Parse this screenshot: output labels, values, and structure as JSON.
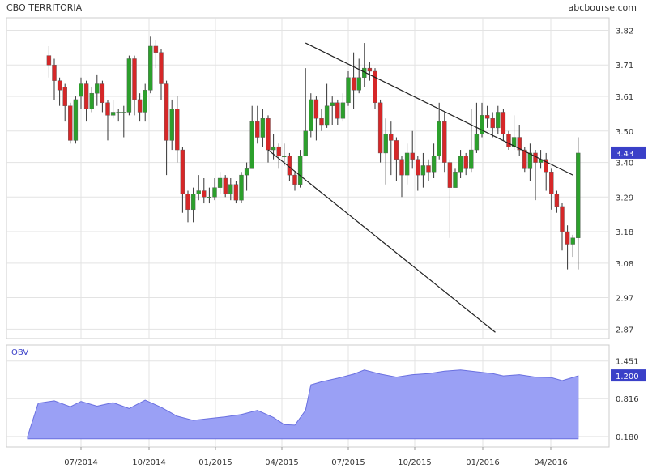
{
  "header": {
    "title": "CBO TERRITORIA",
    "source": "abcbourse.com"
  },
  "chart_data": [
    {
      "type": "candlestick",
      "title": "CBO TERRITORIA",
      "x": [
        "07/2014",
        "10/2014",
        "01/2015",
        "04/2015",
        "07/2015",
        "10/2015",
        "01/2016",
        "04/2016"
      ],
      "y_ticks": [
        "3.82",
        "3.71",
        "3.61",
        "3.50",
        "3.40",
        "3.29",
        "3.18",
        "3.08",
        "2.97",
        "2.87"
      ],
      "ylim": [
        2.84,
        3.86
      ],
      "last_value": "3.43",
      "colors": {
        "up": "#2ca02c",
        "down": "#d62728",
        "wick": "#333333"
      },
      "grid": true,
      "trendlines": [
        {
          "name": "upper",
          "from": [
            2015.34,
            3.78
          ],
          "to": [
            2016.34,
            3.36
          ]
        },
        {
          "name": "lower",
          "from": [
            2015.2,
            3.44
          ],
          "to": [
            2016.05,
            2.86
          ]
        }
      ],
      "series": [
        {
          "values": [
            [
              2014.38,
              3.74,
              3.71,
              3.77,
              3.67
            ],
            [
              2014.4,
              3.71,
              3.66,
              3.73,
              3.6
            ],
            [
              2014.42,
              3.66,
              3.63,
              3.67,
              3.58
            ],
            [
              2014.44,
              3.64,
              3.58,
              3.65,
              3.53
            ],
            [
              2014.46,
              3.58,
              3.47,
              3.59,
              3.46
            ],
            [
              2014.48,
              3.47,
              3.6,
              3.61,
              3.46
            ],
            [
              2014.5,
              3.61,
              3.65,
              3.67,
              3.57
            ],
            [
              2014.52,
              3.65,
              3.57,
              3.66,
              3.53
            ],
            [
              2014.54,
              3.57,
              3.62,
              3.64,
              3.56
            ],
            [
              2014.56,
              3.62,
              3.65,
              3.68,
              3.58
            ],
            [
              2014.58,
              3.65,
              3.59,
              3.66,
              3.56
            ],
            [
              2014.6,
              3.59,
              3.55,
              3.6,
              3.47
            ],
            [
              2014.62,
              3.55,
              3.56,
              3.6,
              3.54
            ],
            [
              2014.64,
              3.56,
              3.56,
              3.57,
              3.53
            ],
            [
              2014.66,
              3.56,
              3.56,
              3.58,
              3.48
            ],
            [
              2014.68,
              3.56,
              3.73,
              3.74,
              3.55
            ],
            [
              2014.7,
              3.73,
              3.6,
              3.74,
              3.55
            ],
            [
              2014.72,
              3.6,
              3.56,
              3.62,
              3.53
            ],
            [
              2014.74,
              3.56,
              3.63,
              3.65,
              3.53
            ],
            [
              2014.76,
              3.63,
              3.77,
              3.8,
              3.62
            ],
            [
              2014.78,
              3.77,
              3.75,
              3.79,
              3.7
            ],
            [
              2014.8,
              3.75,
              3.65,
              3.76,
              3.6
            ],
            [
              2014.82,
              3.65,
              3.47,
              3.66,
              3.36
            ],
            [
              2014.84,
              3.47,
              3.57,
              3.6,
              3.44
            ],
            [
              2014.86,
              3.57,
              3.44,
              3.61,
              3.4
            ],
            [
              2014.88,
              3.44,
              3.3,
              3.45,
              3.24
            ],
            [
              2014.9,
              3.3,
              3.25,
              3.31,
              3.21
            ],
            [
              2014.92,
              3.25,
              3.3,
              3.32,
              3.21
            ],
            [
              2014.94,
              3.3,
              3.31,
              3.36,
              3.28
            ],
            [
              2014.96,
              3.31,
              3.29,
              3.35,
              3.27
            ],
            [
              2014.98,
              3.29,
              3.29,
              3.32,
              3.27
            ],
            [
              2015.0,
              3.29,
              3.32,
              3.35,
              3.28
            ],
            [
              2015.02,
              3.32,
              3.35,
              3.37,
              3.3
            ],
            [
              2015.04,
              3.35,
              3.3,
              3.36,
              3.29
            ],
            [
              2015.06,
              3.3,
              3.33,
              3.35,
              3.28
            ],
            [
              2015.08,
              3.33,
              3.28,
              3.34,
              3.27
            ],
            [
              2015.1,
              3.28,
              3.36,
              3.37,
              3.27
            ],
            [
              2015.12,
              3.36,
              3.38,
              3.4,
              3.31
            ],
            [
              2015.14,
              3.38,
              3.53,
              3.58,
              3.38
            ],
            [
              2015.16,
              3.53,
              3.48,
              3.58,
              3.46
            ],
            [
              2015.18,
              3.48,
              3.54,
              3.57,
              3.45
            ],
            [
              2015.2,
              3.54,
              3.44,
              3.55,
              3.4
            ],
            [
              2015.22,
              3.44,
              3.45,
              3.49,
              3.41
            ],
            [
              2015.24,
              3.45,
              3.42,
              3.46,
              3.38
            ],
            [
              2015.26,
              3.42,
              3.42,
              3.46,
              3.39
            ],
            [
              2015.28,
              3.42,
              3.36,
              3.43,
              3.34
            ],
            [
              2015.3,
              3.36,
              3.33,
              3.37,
              3.31
            ],
            [
              2015.32,
              3.33,
              3.42,
              3.44,
              3.32
            ],
            [
              2015.34,
              3.42,
              3.5,
              3.7,
              3.49
            ],
            [
              2015.36,
              3.5,
              3.6,
              3.62,
              3.48
            ],
            [
              2015.38,
              3.6,
              3.54,
              3.61,
              3.47
            ],
            [
              2015.4,
              3.54,
              3.52,
              3.57,
              3.5
            ],
            [
              2015.42,
              3.52,
              3.58,
              3.65,
              3.51
            ],
            [
              2015.44,
              3.58,
              3.59,
              3.61,
              3.52
            ],
            [
              2015.46,
              3.59,
              3.54,
              3.6,
              3.52
            ],
            [
              2015.48,
              3.54,
              3.59,
              3.62,
              3.53
            ],
            [
              2015.5,
              3.59,
              3.67,
              3.69,
              3.58
            ],
            [
              2015.52,
              3.67,
              3.63,
              3.75,
              3.57
            ],
            [
              2015.54,
              3.63,
              3.67,
              3.73,
              3.62
            ],
            [
              2015.56,
              3.67,
              3.7,
              3.78,
              3.64
            ],
            [
              2015.58,
              3.7,
              3.69,
              3.72,
              3.66
            ],
            [
              2015.6,
              3.69,
              3.59,
              3.7,
              3.57
            ],
            [
              2015.62,
              3.59,
              3.43,
              3.6,
              3.4
            ],
            [
              2015.64,
              3.43,
              3.49,
              3.54,
              3.33
            ],
            [
              2015.66,
              3.49,
              3.47,
              3.53,
              3.36
            ],
            [
              2015.68,
              3.47,
              3.41,
              3.48,
              3.34
            ],
            [
              2015.7,
              3.41,
              3.36,
              3.42,
              3.29
            ],
            [
              2015.72,
              3.36,
              3.43,
              3.46,
              3.33
            ],
            [
              2015.74,
              3.43,
              3.41,
              3.5,
              3.38
            ],
            [
              2015.76,
              3.41,
              3.36,
              3.42,
              3.31
            ],
            [
              2015.78,
              3.36,
              3.39,
              3.43,
              3.32
            ],
            [
              2015.8,
              3.39,
              3.37,
              3.41,
              3.34
            ],
            [
              2015.82,
              3.37,
              3.42,
              3.46,
              3.35
            ],
            [
              2015.84,
              3.42,
              3.53,
              3.59,
              3.41
            ],
            [
              2015.86,
              3.53,
              3.4,
              3.56,
              3.37
            ],
            [
              2015.88,
              3.4,
              3.32,
              3.41,
              3.16
            ],
            [
              2015.9,
              3.32,
              3.37,
              3.38,
              3.33
            ],
            [
              2015.92,
              3.37,
              3.42,
              3.44,
              3.35
            ],
            [
              2015.94,
              3.42,
              3.38,
              3.43,
              3.36
            ],
            [
              2015.96,
              3.38,
              3.44,
              3.57,
              3.37
            ],
            [
              2015.98,
              3.44,
              3.49,
              3.59,
              3.43
            ],
            [
              2016.0,
              3.49,
              3.55,
              3.59,
              3.48
            ],
            [
              2016.02,
              3.55,
              3.54,
              3.58,
              3.51
            ],
            [
              2016.04,
              3.54,
              3.51,
              3.56,
              3.48
            ],
            [
              2016.06,
              3.51,
              3.56,
              3.58,
              3.49
            ],
            [
              2016.08,
              3.56,
              3.49,
              3.57,
              3.47
            ],
            [
              2016.1,
              3.49,
              3.45,
              3.5,
              3.44
            ],
            [
              2016.12,
              3.45,
              3.48,
              3.55,
              3.44
            ],
            [
              2016.14,
              3.48,
              3.44,
              3.52,
              3.42
            ],
            [
              2016.16,
              3.44,
              3.38,
              3.45,
              3.37
            ],
            [
              2016.18,
              3.38,
              3.43,
              3.46,
              3.34
            ],
            [
              2016.2,
              3.43,
              3.4,
              3.44,
              3.28
            ],
            [
              2016.22,
              3.4,
              3.41,
              3.44,
              3.38
            ],
            [
              2016.24,
              3.41,
              3.37,
              3.43,
              3.31
            ],
            [
              2016.26,
              3.37,
              3.3,
              3.38,
              3.25
            ],
            [
              2016.28,
              3.3,
              3.26,
              3.31,
              3.24
            ],
            [
              2016.3,
              3.26,
              3.18,
              3.27,
              3.12
            ],
            [
              2016.32,
              3.18,
              3.14,
              3.2,
              3.06
            ],
            [
              2016.34,
              3.14,
              3.16,
              3.17,
              3.1
            ],
            [
              2016.36,
              3.16,
              3.43,
              3.48,
              3.06
            ]
          ]
        }
      ]
    },
    {
      "type": "area",
      "title": "OBV",
      "x": [
        "07/2014",
        "10/2014",
        "01/2015",
        "04/2015",
        "07/2015",
        "10/2015",
        "01/2016",
        "04/2016"
      ],
      "y_ticks": [
        "1.451",
        "0.816",
        "0.180"
      ],
      "ylim": [
        0.0,
        1.72
      ],
      "last_value": "1.200",
      "colors": {
        "fill": "#9aa0f5",
        "line": "#6a70e0"
      },
      "grid": true,
      "series": [
        {
          "x": [
            2014.3,
            2014.34,
            2014.4,
            2014.46,
            2014.5,
            2014.56,
            2014.62,
            2014.68,
            2014.74,
            2014.8,
            2014.86,
            2014.92,
            2014.98,
            2015.04,
            2015.1,
            2015.16,
            2015.22,
            2015.26,
            2015.3,
            2015.34,
            2015.36,
            2015.4,
            2015.46,
            2015.52,
            2015.56,
            2015.62,
            2015.68,
            2015.74,
            2015.8,
            2015.86,
            2015.92,
            2015.98,
            2016.04,
            2016.08,
            2016.14,
            2016.2,
            2016.26,
            2016.3,
            2016.36
          ],
          "values": [
            0.18,
            0.74,
            0.78,
            0.68,
            0.77,
            0.69,
            0.75,
            0.65,
            0.79,
            0.67,
            0.52,
            0.45,
            0.48,
            0.51,
            0.55,
            0.62,
            0.5,
            0.38,
            0.37,
            0.62,
            1.05,
            1.1,
            1.16,
            1.23,
            1.3,
            1.23,
            1.18,
            1.22,
            1.24,
            1.28,
            1.3,
            1.27,
            1.24,
            1.2,
            1.22,
            1.18,
            1.17,
            1.12,
            1.2
          ]
        }
      ]
    }
  ]
}
